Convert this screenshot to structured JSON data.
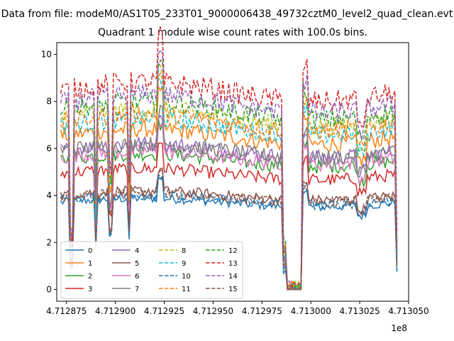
{
  "figure": {
    "suptitle": "Data from file: modeM0/AS1T05_233T01_9000006438_49732cztM0_level2_quad_clean.evt"
  },
  "chart_data": {
    "type": "line",
    "title": "Quadrant 1 module wise count rates with 100.0s bins.",
    "xlabel": "",
    "ylabel": "",
    "x_offset_label": "1e8",
    "xlim": [
      471287000,
      471305000
    ],
    "ylim": [
      -0.5,
      10.5
    ],
    "x_ticks": [
      471287500,
      471290000,
      471292500,
      471295000,
      471297500,
      471300000,
      471302500,
      471305000
    ],
    "x_tick_labels": [
      "4.712875",
      "4.712900",
      "4.712925",
      "4.712950",
      "4.712975",
      "4.713000",
      "4.713025",
      "4.713050"
    ],
    "y_ticks": [
      0,
      2,
      4,
      6,
      8,
      10
    ],
    "y_tick_labels": [
      "0",
      "2",
      "4",
      "6",
      "8",
      "10"
    ],
    "x_range_data": [
      471287200,
      471304400
    ],
    "bin_width": 100,
    "grid": false,
    "legend": {
      "position": "lower-left",
      "columns": 4
    },
    "series": [
      {
        "name": "0",
        "color": "#1f77b4",
        "dash": "solid",
        "level": 3.7
      },
      {
        "name": "1",
        "color": "#ff7f0e",
        "dash": "solid",
        "level": 6.5
      },
      {
        "name": "2",
        "color": "#2ca02c",
        "dash": "solid",
        "level": 5.5
      },
      {
        "name": "3",
        "color": "#d62728",
        "dash": "solid",
        "level": 4.9
      },
      {
        "name": "4",
        "color": "#9467bd",
        "dash": "solid",
        "level": 5.9
      },
      {
        "name": "5",
        "color": "#8c564b",
        "dash": "solid",
        "level": 4.0
      },
      {
        "name": "6",
        "color": "#e377c2",
        "dash": "solid",
        "level": 5.6
      },
      {
        "name": "7",
        "color": "#7f7f7f",
        "dash": "solid",
        "level": 5.9
      },
      {
        "name": "8",
        "color": "#bcbd22",
        "dash": "dashed",
        "level": 7.3
      },
      {
        "name": "9",
        "color": "#17becf",
        "dash": "dashed",
        "level": 6.9
      },
      {
        "name": "10",
        "color": "#1f77b4",
        "dash": "dashed",
        "level": 3.8
      },
      {
        "name": "11",
        "color": "#ff7f0e",
        "dash": "dashed",
        "level": 7.1
      },
      {
        "name": "12",
        "color": "#2ca02c",
        "dash": "dashed",
        "level": 7.6
      },
      {
        "name": "13",
        "color": "#d62728",
        "dash": "dashed",
        "level": 8.4
      },
      {
        "name": "14",
        "color": "#9467bd",
        "dash": "dashed",
        "level": 7.9
      },
      {
        "name": "15",
        "color": "#8c564b",
        "dash": "dashed",
        "level": 3.9
      }
    ]
  }
}
